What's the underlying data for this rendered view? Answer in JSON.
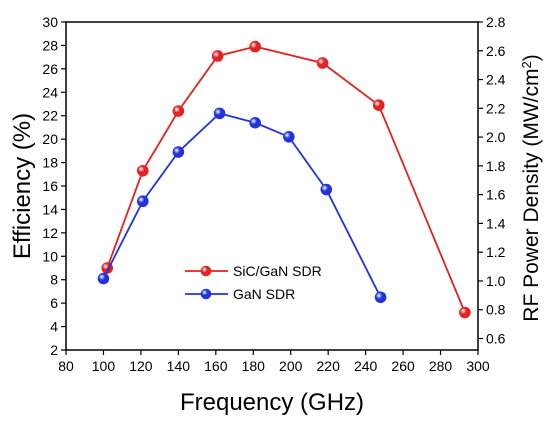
{
  "chart_data": {
    "type": "line",
    "xlabel": "Frequency (GHz)",
    "ylabel_left": "Efficiency (%)",
    "ylabel_right_main": "RF Power Density (MW/cm",
    "ylabel_right_sup": "2",
    "ylabel_right_close": ")",
    "xlim": [
      80,
      300
    ],
    "ylim_left": [
      2,
      30
    ],
    "ylim_right": [
      0.52,
      2.8
    ],
    "x_ticks": [
      "80",
      "100",
      "120",
      "140",
      "160",
      "180",
      "200",
      "220",
      "240",
      "260",
      "280",
      "300"
    ],
    "y_left_ticks": [
      "2",
      "4",
      "6",
      "8",
      "10",
      "12",
      "14",
      "16",
      "18",
      "20",
      "22",
      "24",
      "26",
      "28",
      "30"
    ],
    "y_right_ticks": [
      "0.6",
      "0.8",
      "1.0",
      "1.2",
      "1.4",
      "1.6",
      "1.8",
      "2.0",
      "2.2",
      "2.4",
      "2.6",
      "2.8"
    ],
    "grid": false,
    "legend_position": "center-left",
    "series": [
      {
        "name": "SiC/GaN SDR",
        "color": "#e32222",
        "x": [
          102,
          121,
          140,
          161,
          181,
          217,
          247,
          293
        ],
        "y": [
          9.0,
          17.3,
          22.4,
          27.1,
          27.9,
          26.5,
          22.9,
          5.2
        ]
      },
      {
        "name": "GaN SDR",
        "color": "#2233dd",
        "x": [
          100,
          121,
          140,
          162,
          181,
          199,
          219,
          248
        ],
        "y": [
          8.1,
          14.7,
          18.9,
          22.2,
          21.4,
          20.2,
          15.7,
          6.5
        ]
      }
    ]
  }
}
